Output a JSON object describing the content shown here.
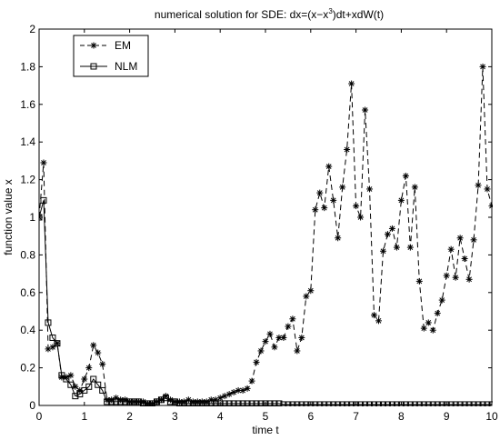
{
  "chart_data": {
    "type": "line",
    "title_parts": {
      "prefix": "numerical solution for SDE: dx=(x−x",
      "superscript": "3",
      "suffix": ")dt+xdW(t)"
    },
    "xlabel": "time t",
    "ylabel": "function value x",
    "xlim": [
      0,
      10
    ],
    "ylim": [
      0,
      2
    ],
    "xticks": [
      0,
      1,
      2,
      3,
      4,
      5,
      6,
      7,
      8,
      9,
      10
    ],
    "xtick_labels": [
      "0",
      "1",
      "2",
      "3",
      "4",
      "5",
      "6",
      "7",
      "8",
      "9",
      "10"
    ],
    "yticks": [
      0,
      0.2,
      0.4,
      0.6,
      0.8,
      1,
      1.2,
      1.4,
      1.6,
      1.8,
      2
    ],
    "ytick_labels": [
      "0",
      "0.2",
      "0.4",
      "0.6",
      "0.8",
      "1",
      "1.2",
      "1.4",
      "1.6",
      "1.8",
      "2"
    ],
    "grid": false,
    "legend_position": "top-left",
    "series": [
      {
        "name": "EM",
        "style": "dashed",
        "marker": "asterisk",
        "color": "#000000",
        "x": [
          0,
          0.1,
          0.2,
          0.3,
          0.4,
          0.5,
          0.6,
          0.7,
          0.8,
          0.9,
          1.0,
          1.1,
          1.2,
          1.3,
          1.4,
          1.5,
          1.6,
          1.7,
          1.8,
          1.9,
          2.0,
          2.1,
          2.2,
          2.3,
          2.4,
          2.5,
          2.6,
          2.7,
          2.8,
          2.9,
          3.0,
          3.1,
          3.2,
          3.3,
          3.4,
          3.5,
          3.6,
          3.7,
          3.8,
          3.9,
          4.0,
          4.1,
          4.2,
          4.3,
          4.4,
          4.5,
          4.6,
          4.7,
          4.8,
          4.9,
          5.0,
          5.1,
          5.2,
          5.3,
          5.4,
          5.5,
          5.6,
          5.7,
          5.8,
          5.9,
          6.0,
          6.1,
          6.2,
          6.3,
          6.4,
          6.5,
          6.6,
          6.7,
          6.8,
          6.9,
          7.0,
          7.1,
          7.2,
          7.3,
          7.4,
          7.5,
          7.6,
          7.7,
          7.8,
          7.9,
          8.0,
          8.1,
          8.2,
          8.3,
          8.4,
          8.5,
          8.6,
          8.7,
          8.8,
          8.9,
          9.0,
          9.1,
          9.2,
          9.3,
          9.4,
          9.5,
          9.6,
          9.7,
          9.8,
          9.9,
          10.0
        ],
        "y": [
          1.0,
          1.29,
          0.3,
          0.31,
          0.33,
          0.15,
          0.15,
          0.16,
          0.1,
          0.08,
          0.14,
          0.2,
          0.32,
          0.28,
          0.22,
          0.03,
          0.03,
          0.04,
          0.03,
          0.03,
          0.02,
          0.02,
          0.02,
          0.02,
          0.01,
          0.01,
          0.02,
          0.03,
          0.05,
          0.03,
          0.02,
          0.02,
          0.02,
          0.03,
          0.02,
          0.02,
          0.02,
          0.02,
          0.03,
          0.03,
          0.04,
          0.05,
          0.06,
          0.07,
          0.08,
          0.08,
          0.09,
          0.13,
          0.23,
          0.29,
          0.34,
          0.38,
          0.31,
          0.36,
          0.36,
          0.42,
          0.46,
          0.29,
          0.36,
          0.58,
          0.61,
          1.04,
          1.13,
          1.05,
          1.27,
          1.09,
          0.89,
          1.16,
          1.36,
          1.71,
          1.06,
          1.0,
          1.57,
          1.15,
          0.48,
          0.45,
          0.82,
          0.91,
          0.94,
          0.84,
          1.09,
          1.22,
          0.84,
          1.16,
          0.66,
          0.41,
          0.44,
          0.4,
          0.49,
          0.56,
          0.69,
          0.83,
          0.68,
          0.89,
          0.78,
          0.67,
          0.88,
          1.17,
          1.8,
          1.15,
          1.06
        ]
      },
      {
        "name": "NLM",
        "style": "solid",
        "marker": "square",
        "color": "#000000",
        "x": [
          0,
          0.1,
          0.2,
          0.3,
          0.4,
          0.5,
          0.6,
          0.7,
          0.8,
          0.9,
          1.0,
          1.1,
          1.2,
          1.3,
          1.4,
          1.5,
          1.6,
          1.7,
          1.8,
          1.9,
          2.0,
          2.1,
          2.2,
          2.3,
          2.4,
          2.5,
          2.6,
          2.7,
          2.8,
          2.9,
          3.0,
          3.1,
          3.2,
          3.3,
          3.4,
          3.5,
          3.6,
          3.7,
          3.8,
          3.9,
          4.0,
          4.1,
          4.2,
          4.3,
          4.4,
          4.5,
          4.6,
          4.7,
          4.8,
          4.9,
          5.0,
          5.1,
          5.2,
          5.3,
          5.4,
          5.5,
          5.6,
          5.7,
          5.8,
          5.9,
          6.0,
          6.1,
          6.2,
          6.3,
          6.4,
          6.5,
          6.6,
          6.7,
          6.8,
          6.9,
          7.0,
          7.1,
          7.2,
          7.3,
          7.4,
          7.5,
          7.6,
          7.7,
          7.8,
          7.9,
          8.0,
          8.1,
          8.2,
          8.3,
          8.4,
          8.5,
          8.6,
          8.7,
          8.8,
          8.9,
          9.0,
          9.1,
          9.2,
          9.3,
          9.4,
          9.5,
          9.6,
          9.7,
          9.8,
          9.9,
          10.0
        ],
        "y": [
          1.0,
          1.09,
          0.44,
          0.36,
          0.33,
          0.16,
          0.14,
          0.11,
          0.05,
          0.06,
          0.08,
          0.1,
          0.14,
          0.11,
          0.08,
          0.02,
          0.02,
          0.02,
          0.02,
          0.02,
          0.02,
          0.02,
          0.02,
          0.01,
          0.01,
          0.01,
          0.02,
          0.03,
          0.04,
          0.02,
          0.02,
          0.01,
          0.01,
          0.01,
          0.01,
          0.01,
          0.01,
          0.01,
          0.01,
          0.01,
          0.01,
          0.01,
          0.01,
          0.01,
          0.01,
          0.01,
          0.01,
          0.01,
          0.01,
          0.01,
          0.01,
          0.01,
          0.01,
          0.01,
          0.005,
          0.005,
          0.005,
          0.005,
          0.005,
          0.005,
          0.005,
          0.005,
          0.005,
          0.005,
          0.005,
          0.005,
          0.005,
          0.005,
          0.005,
          0.005,
          0.005,
          0.005,
          0.005,
          0.005,
          0.005,
          0.005,
          0.005,
          0.005,
          0.005,
          0.005,
          0.005,
          0.005,
          0.005,
          0.005,
          0.005,
          0.005,
          0.005,
          0.005,
          0.005,
          0.005,
          0.005,
          0.005,
          0.005,
          0.005,
          0.005,
          0.005,
          0.005,
          0.005,
          0.005,
          0.005,
          0.005
        ]
      }
    ]
  }
}
